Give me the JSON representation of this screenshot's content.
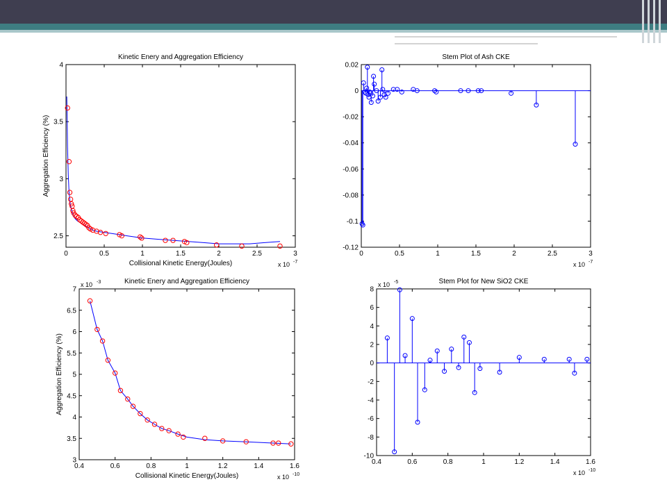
{
  "colors": {
    "header_bar": "#3f3e50",
    "accent_stripe": "#3e7d82",
    "line_color": "#0000ff",
    "marker_red": "#ff0000",
    "marker_blue": "#0000ff"
  },
  "chart_data": [
    {
      "type": "line",
      "title": "Kinetic Enery and Aggregation Efficiency",
      "xlabel": "Collisional Kinetic Energy(Joules)",
      "ylabel": "Aggregation Efficiency (%)",
      "x_multiplier": "x 10",
      "x_exponent": "-7",
      "y_multiplier": "",
      "y_exponent": "",
      "xlim": [
        0,
        3
      ],
      "ylim": [
        2.4,
        4
      ],
      "xticks": [
        0,
        0.5,
        1,
        1.5,
        2,
        2.5,
        3
      ],
      "xtick_labels": [
        "0",
        "0.5",
        "1",
        "1.5",
        "2",
        "2.5",
        "3"
      ],
      "yticks": [
        2.5,
        3,
        3.5,
        4
      ],
      "ytick_labels": [
        "2.5",
        "3",
        "3.5",
        "4"
      ],
      "line_x": [
        0.01,
        0.015,
        0.02,
        0.03,
        0.04,
        0.05,
        0.06,
        0.08,
        0.1,
        0.12,
        0.15,
        0.2,
        0.25,
        0.3,
        0.35,
        0.4,
        0.5,
        0.6,
        0.7,
        0.8,
        1.0,
        1.2,
        1.4,
        1.6,
        1.8,
        2.0,
        2.2,
        2.4,
        2.6,
        2.8
      ],
      "line_y": [
        3.72,
        3.55,
        3.28,
        3.03,
        2.88,
        2.81,
        2.76,
        2.71,
        2.67,
        2.65,
        2.63,
        2.61,
        2.59,
        2.57,
        2.55,
        2.54,
        2.53,
        2.52,
        2.51,
        2.5,
        2.48,
        2.47,
        2.46,
        2.45,
        2.44,
        2.43,
        2.43,
        2.43,
        2.44,
        2.45
      ],
      "markers_x": [
        0.02,
        0.04,
        0.05,
        0.06,
        0.07,
        0.08,
        0.09,
        0.1,
        0.12,
        0.14,
        0.16,
        0.18,
        0.2,
        0.22,
        0.24,
        0.26,
        0.28,
        0.3,
        0.32,
        0.35,
        0.4,
        0.45,
        0.52,
        0.7,
        0.73,
        0.97,
        0.99,
        1.3,
        1.4,
        1.55,
        1.58,
        1.97,
        2.3,
        2.8
      ],
      "markers_y": [
        3.62,
        3.15,
        2.88,
        2.82,
        2.78,
        2.76,
        2.72,
        2.7,
        2.68,
        2.67,
        2.66,
        2.64,
        2.63,
        2.62,
        2.61,
        2.6,
        2.59,
        2.57,
        2.56,
        2.55,
        2.54,
        2.53,
        2.52,
        2.51,
        2.5,
        2.49,
        2.48,
        2.46,
        2.46,
        2.45,
        2.44,
        2.42,
        2.41,
        2.41
      ],
      "marker_color": "#ff0000",
      "line_color": "#0000ff"
    },
    {
      "type": "stem",
      "title": "Stem Plot of Ash CKE",
      "xlabel": "",
      "ylabel": "",
      "x_multiplier": "x 10",
      "x_exponent": "-7",
      "y_multiplier": "",
      "y_exponent": "",
      "xlim": [
        0,
        3
      ],
      "ylim": [
        -0.12,
        0.02
      ],
      "xticks": [
        0,
        0.5,
        1,
        1.5,
        2,
        2.5,
        3
      ],
      "xtick_labels": [
        "0",
        "0.5",
        "1",
        "1.5",
        "2",
        "2.5",
        "3"
      ],
      "yticks": [
        -0.12,
        -0.1,
        -0.08,
        -0.06,
        -0.04,
        -0.02,
        0,
        0.02
      ],
      "ytick_labels": [
        "-0.12",
        "-0.1",
        "-0.08",
        "-0.06",
        "-0.04",
        "-0.02",
        "0",
        "0.02"
      ],
      "x": [
        0.01,
        0.02,
        0.03,
        0.05,
        0.06,
        0.07,
        0.08,
        0.09,
        0.1,
        0.11,
        0.13,
        0.15,
        0.16,
        0.17,
        0.2,
        0.22,
        0.25,
        0.27,
        0.28,
        0.3,
        0.32,
        0.35,
        0.42,
        0.47,
        0.53,
        0.68,
        0.73,
        0.96,
        0.98,
        1.3,
        1.4,
        1.53,
        1.57,
        1.96,
        2.29,
        2.8
      ],
      "y": [
        -0.102,
        -0.103,
        0.006,
        -0.001,
        -0.002,
        0.002,
        0.018,
        -0.003,
        -0.005,
        -0.001,
        -0.009,
        -0.004,
        0.011,
        0.005,
        0.0,
        -0.008,
        -0.005,
        0.016,
        0.001,
        -0.003,
        -0.005,
        -0.002,
        0.001,
        0.001,
        -0.001,
        0.001,
        0.0,
        0.0,
        -0.001,
        0.0,
        0.0,
        0.0,
        0.0,
        -0.002,
        -0.011,
        -0.041
      ],
      "line_color": "#0000ff"
    },
    {
      "type": "line",
      "title": "Kinetic Enery and Aggregation Efficiency",
      "xlabel": "Collisional Kinetic Energy(Joules)",
      "ylabel": "Aggregation Efficiency (%)",
      "x_multiplier": "x 10",
      "x_exponent": "-10",
      "y_multiplier": "x 10",
      "y_exponent": "-3",
      "xlim": [
        0.4,
        1.6
      ],
      "ylim": [
        3,
        7
      ],
      "xticks": [
        0.4,
        0.6,
        0.8,
        1.0,
        1.2,
        1.4,
        1.6
      ],
      "xtick_labels": [
        "0.4",
        "0.6",
        "0.8",
        "1",
        "1.2",
        "1.4",
        "1.6"
      ],
      "yticks": [
        3,
        3.5,
        4,
        4.5,
        5,
        5.5,
        6,
        6.5,
        7
      ],
      "ytick_labels": [
        "3",
        "3.5",
        "4",
        "4.5",
        "5",
        "5.5",
        "6",
        "6.5",
        "7"
      ],
      "line_x": [
        0.46,
        0.5,
        0.53,
        0.56,
        0.6,
        0.63,
        0.67,
        0.7,
        0.74,
        0.78,
        0.82,
        0.86,
        0.9,
        0.95,
        1.0,
        1.1,
        1.2,
        1.33,
        1.48,
        1.58
      ],
      "line_y": [
        6.72,
        6.05,
        5.78,
        5.33,
        5.03,
        4.62,
        4.42,
        4.25,
        4.08,
        3.93,
        3.83,
        3.73,
        3.68,
        3.6,
        3.53,
        3.47,
        3.44,
        3.42,
        3.39,
        3.37
      ],
      "markers_x": [
        0.46,
        0.5,
        0.53,
        0.56,
        0.6,
        0.63,
        0.67,
        0.7,
        0.74,
        0.78,
        0.82,
        0.86,
        0.9,
        0.95,
        0.98,
        1.1,
        1.2,
        1.33,
        1.48,
        1.51,
        1.58
      ],
      "markers_y": [
        6.72,
        6.05,
        5.78,
        5.33,
        5.03,
        4.62,
        4.42,
        4.25,
        4.08,
        3.93,
        3.83,
        3.73,
        3.68,
        3.6,
        3.53,
        3.5,
        3.44,
        3.42,
        3.39,
        3.39,
        3.37
      ],
      "marker_color": "#ff0000",
      "line_color": "#0000ff"
    },
    {
      "type": "stem",
      "title": "Stem Plot for New SiO2 CKE",
      "xlabel": "",
      "ylabel": "",
      "x_multiplier": "x 10",
      "x_exponent": "-10",
      "y_multiplier": "x 10",
      "y_exponent": "-5",
      "xlim": [
        0.4,
        1.6
      ],
      "ylim": [
        -10,
        8
      ],
      "xticks": [
        0.4,
        0.6,
        0.8,
        1.0,
        1.2,
        1.4,
        1.6
      ],
      "xtick_labels": [
        "0.4",
        "0.6",
        "0.8",
        "1",
        "1.2",
        "1.4",
        "1.6"
      ],
      "yticks": [
        -10,
        -8,
        -6,
        -4,
        -2,
        0,
        2,
        4,
        6,
        8
      ],
      "ytick_labels": [
        "-10",
        "-8",
        "-6",
        "-4",
        "-2",
        "0",
        "2",
        "4",
        "6",
        "8"
      ],
      "x": [
        0.46,
        0.5,
        0.53,
        0.56,
        0.6,
        0.63,
        0.67,
        0.7,
        0.74,
        0.78,
        0.82,
        0.86,
        0.89,
        0.92,
        0.95,
        0.98,
        1.09,
        1.2,
        1.34,
        1.48,
        1.51,
        1.58
      ],
      "y": [
        2.7,
        -9.6,
        7.9,
        0.8,
        4.8,
        -6.4,
        -2.9,
        0.3,
        1.3,
        -0.9,
        1.5,
        -0.5,
        2.8,
        2.2,
        -3.2,
        -0.6,
        -1.0,
        0.6,
        0.4,
        0.4,
        -1.1,
        0.4
      ],
      "line_color": "#0000ff"
    }
  ]
}
